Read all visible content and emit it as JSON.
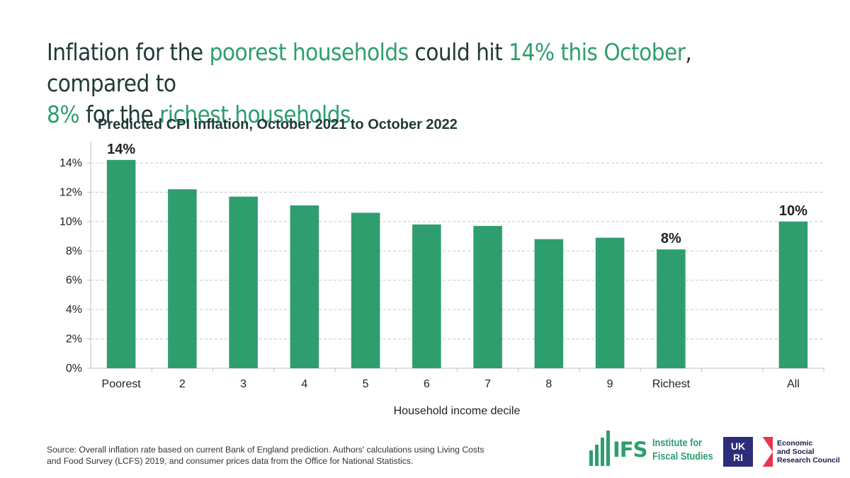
{
  "headline": {
    "t1": "Inflation for the ",
    "t2": "poorest households",
    "t3": " could hit ",
    "t4": "14% this October",
    "t5": ", compared to",
    "t6": "8%",
    "t7": " for the ",
    "t8": "richest households"
  },
  "colors": {
    "bar": "#2e9e6e",
    "headline": "#1f3a36",
    "accent": "#2e9e6e",
    "grid": "#c8c8c8"
  },
  "chart_data": {
    "type": "bar",
    "title": "Predicted CPI inflation, October 2021 to October 2022",
    "xlabel": "Household income decile",
    "ylabel": "",
    "categories": [
      "Poorest",
      "2",
      "3",
      "4",
      "5",
      "6",
      "7",
      "8",
      "9",
      "Richest",
      "",
      "All"
    ],
    "values": [
      14.2,
      12.2,
      11.7,
      11.1,
      10.6,
      9.8,
      9.7,
      8.8,
      8.9,
      8.1,
      null,
      10.0
    ],
    "data_labels": [
      "14%",
      "",
      "",
      "",
      "",
      "",
      "",
      "",
      "",
      "8%",
      "",
      "10%"
    ],
    "ylim": [
      0,
      14
    ],
    "yticks": [
      0,
      2,
      4,
      6,
      8,
      10,
      12,
      14
    ],
    "ytick_labels": [
      "0%",
      "2%",
      "4%",
      "6%",
      "8%",
      "10%",
      "12%",
      "14%"
    ],
    "grid": true,
    "legend": "none"
  },
  "footer": {
    "source_line1": "Source: Overall inflation rate based on current Bank of England prediction. Authors' calculations using Living Costs",
    "source_line2": "and Food Survey (LCFS) 2019, and consumer prices data from the Office for National Statistics.",
    "ifs_word": "IFS",
    "ifs_name_line1": "Institute for",
    "ifs_name_line2": "Fiscal Studies",
    "ukri_line1": "UK",
    "ukri_line2": "RI",
    "esrc_line1": "Economic",
    "esrc_line2": "and Social",
    "esrc_line3": "Research Council"
  }
}
